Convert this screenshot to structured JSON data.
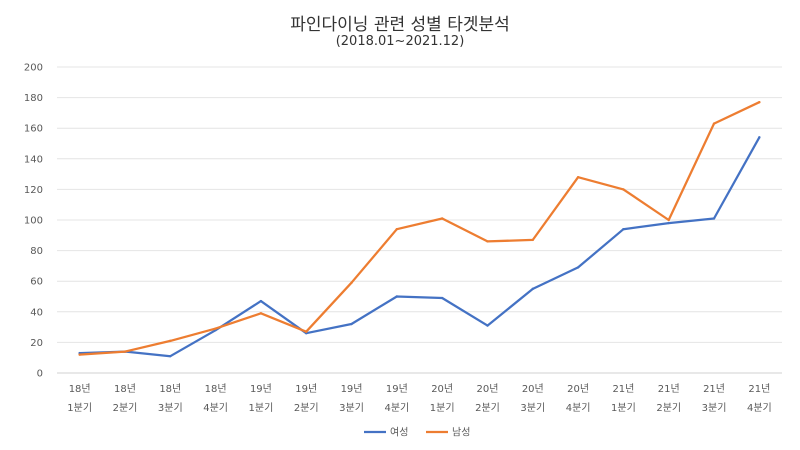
{
  "chart_data": {
    "type": "line",
    "title": "파인다이닝 관련 성별 타겟분석",
    "subtitle": "(2018.01~2021.12)",
    "xlabel": "",
    "ylabel": "",
    "ylim": [
      0,
      200
    ],
    "yticks": [
      0,
      20,
      40,
      60,
      80,
      100,
      120,
      140,
      160,
      180,
      200
    ],
    "grid": true,
    "legend_position": "bottom",
    "categories": [
      [
        "18년",
        "1분기"
      ],
      [
        "18년",
        "2분기"
      ],
      [
        "18년",
        "3분기"
      ],
      [
        "18년",
        "4분기"
      ],
      [
        "19년",
        "1분기"
      ],
      [
        "19년",
        "2분기"
      ],
      [
        "19년",
        "3분기"
      ],
      [
        "19년",
        "4분기"
      ],
      [
        "20년",
        "1분기"
      ],
      [
        "20년",
        "2분기"
      ],
      [
        "20년",
        "3분기"
      ],
      [
        "20년",
        "4분기"
      ],
      [
        "21년",
        "1분기"
      ],
      [
        "21년",
        "2분기"
      ],
      [
        "21년",
        "3분기"
      ],
      [
        "21년",
        "4분기"
      ]
    ],
    "series": [
      {
        "name": "여성",
        "color": "#4472C4",
        "values": [
          13,
          14,
          11,
          28,
          47,
          26,
          32,
          50,
          49,
          31,
          55,
          69,
          94,
          98,
          101,
          154
        ]
      },
      {
        "name": "남성",
        "color": "#ED7D31",
        "values": [
          12,
          14,
          21,
          29,
          39,
          27,
          59,
          94,
          101,
          86,
          87,
          128,
          120,
          100,
          163,
          177
        ]
      }
    ]
  }
}
